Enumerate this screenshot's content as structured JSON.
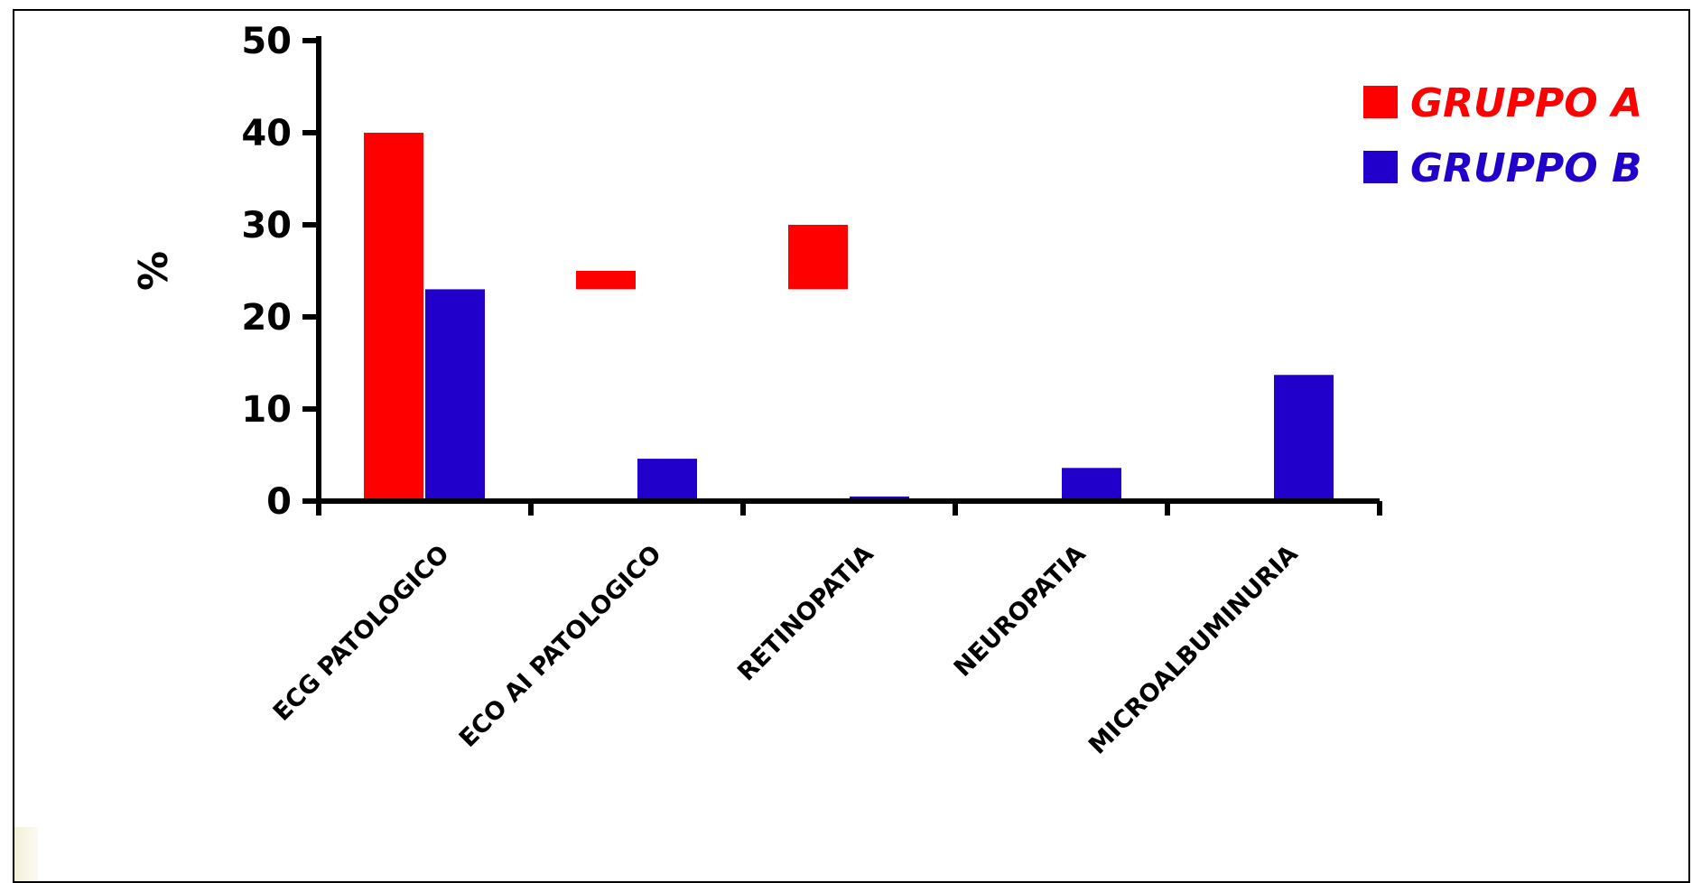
{
  "chart_data": {
    "type": "bar",
    "title": "",
    "xlabel": "",
    "ylabel": "%",
    "ylim": [
      0,
      50
    ],
    "yticks": [
      0,
      10,
      20,
      30,
      40,
      50
    ],
    "categories": [
      "ECG PATOLOGICO",
      "ECO AI PATOLOGICO",
      "RETINOPATIA",
      "NEUROPATIA",
      "MICROALBUMINURIA"
    ],
    "series": [
      {
        "name": "GRUPPO A",
        "color": "#ff0000",
        "values": [
          40,
          25,
          30,
          0,
          0
        ],
        "bar_bottoms": [
          0,
          23,
          23,
          0,
          0
        ]
      },
      {
        "name": "GRUPPO B",
        "color": "#2200cc",
        "values": [
          23,
          4.6,
          0.5,
          3.6,
          13.7
        ],
        "bar_bottoms": [
          0,
          0,
          0,
          0,
          0
        ]
      }
    ],
    "legend_position": "top-right",
    "grid": false
  }
}
